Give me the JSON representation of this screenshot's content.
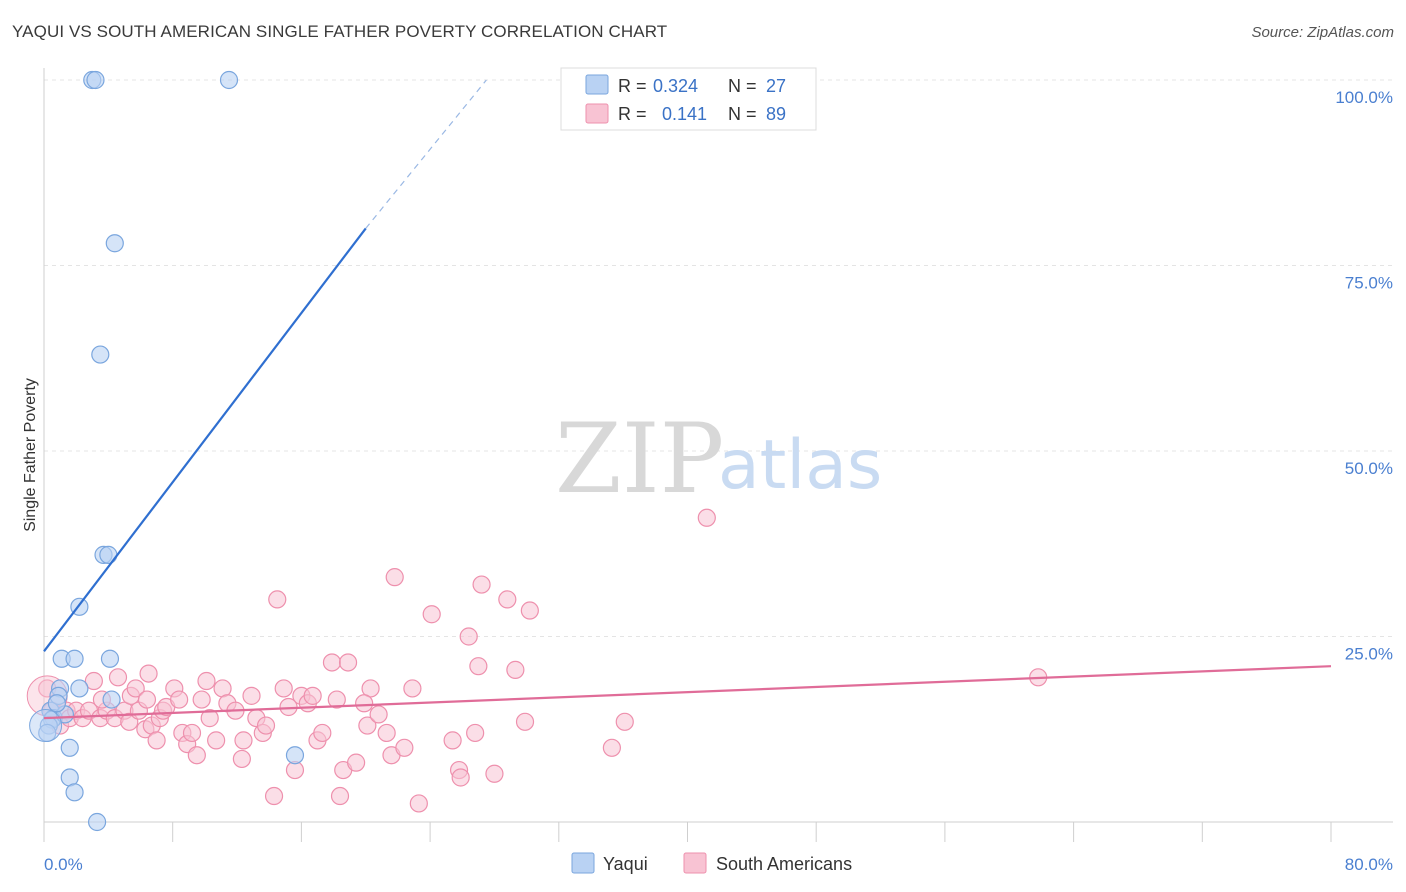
{
  "title": "YAQUI VS SOUTH AMERICAN SINGLE FATHER POVERTY CORRELATION CHART",
  "source": "Source: ZipAtlas.com",
  "watermark": {
    "zip": "ZIP",
    "atlas": "atlas"
  },
  "colors": {
    "yaqui_fill": "#b9d2f3",
    "yaqui_stroke": "#7aa6de",
    "yaqui_line": "#2f6fd0",
    "sa_fill": "#f8c3d3",
    "sa_stroke": "#ee90ad",
    "sa_line": "#e06c98",
    "grid": "#e4e4e4",
    "tick_text": "#4a7fd0"
  },
  "legend": {
    "r_label": "R =",
    "n_label": "N =",
    "rows": [
      {
        "r": "0.324",
        "n": "27"
      },
      {
        "r": "0.141",
        "n": "89"
      }
    ]
  },
  "chart_data": {
    "type": "scatter",
    "title": "YAQUI VS SOUTH AMERICAN SINGLE FATHER POVERTY CORRELATION CHART",
    "xlabel": "",
    "ylabel": "Single Father Poverty",
    "xlim": [
      0,
      80
    ],
    "ylim": [
      0,
      100
    ],
    "x_tick_labels": [
      "0.0%",
      "80.0%"
    ],
    "y_ticks": [
      25,
      50,
      75,
      100
    ],
    "y_tick_labels": [
      "25.0%",
      "50.0%",
      "75.0%",
      "100.0%"
    ],
    "grid": true,
    "series": [
      {
        "name": "Yaqui",
        "r": 0.324,
        "n": 27,
        "trend": {
          "x0": 0,
          "y0": 23,
          "x1": 20,
          "y1": 80,
          "dash_x1": 27.5,
          "dash_y1": 100
        },
        "points": [
          {
            "x": 3.0,
            "y": 100
          },
          {
            "x": 3.2,
            "y": 100
          },
          {
            "x": 11.5,
            "y": 100
          },
          {
            "x": 4.4,
            "y": 78
          },
          {
            "x": 3.5,
            "y": 63
          },
          {
            "x": 3.7,
            "y": 36
          },
          {
            "x": 4.0,
            "y": 36
          },
          {
            "x": 2.2,
            "y": 29
          },
          {
            "x": 1.1,
            "y": 22
          },
          {
            "x": 1.9,
            "y": 22
          },
          {
            "x": 4.1,
            "y": 22
          },
          {
            "x": 1.0,
            "y": 18
          },
          {
            "x": 0.9,
            "y": 17
          },
          {
            "x": 2.2,
            "y": 18
          },
          {
            "x": 4.2,
            "y": 16.5
          },
          {
            "x": 0.4,
            "y": 15
          },
          {
            "x": 0.6,
            "y": 14
          },
          {
            "x": 0.5,
            "y": 13.8
          },
          {
            "x": 0.3,
            "y": 13
          },
          {
            "x": 1.3,
            "y": 14.5
          },
          {
            "x": 1.6,
            "y": 10
          },
          {
            "x": 1.6,
            "y": 6
          },
          {
            "x": 1.9,
            "y": 4
          },
          {
            "x": 3.3,
            "y": 0
          },
          {
            "x": 0.2,
            "y": 12
          },
          {
            "x": 15.6,
            "y": 9
          },
          {
            "x": 0.8,
            "y": 16
          }
        ]
      },
      {
        "name": "South Americans",
        "r": 0.141,
        "n": 89,
        "trend": {
          "x0": 0,
          "y0": 14,
          "x1": 80,
          "y1": 21
        },
        "points": [
          {
            "x": 0.2,
            "y": 18
          },
          {
            "x": 0.5,
            "y": 15
          },
          {
            "x": 1.0,
            "y": 13
          },
          {
            "x": 1.4,
            "y": 15
          },
          {
            "x": 1.6,
            "y": 14
          },
          {
            "x": 2.0,
            "y": 15
          },
          {
            "x": 2.4,
            "y": 14
          },
          {
            "x": 2.8,
            "y": 15
          },
          {
            "x": 3.1,
            "y": 19
          },
          {
            "x": 3.5,
            "y": 14
          },
          {
            "x": 3.9,
            "y": 15
          },
          {
            "x": 4.4,
            "y": 14
          },
          {
            "x": 4.6,
            "y": 19.5
          },
          {
            "x": 5.0,
            "y": 15
          },
          {
            "x": 5.3,
            "y": 13.5
          },
          {
            "x": 5.4,
            "y": 17
          },
          {
            "x": 5.7,
            "y": 18
          },
          {
            "x": 5.9,
            "y": 15
          },
          {
            "x": 6.3,
            "y": 12.5
          },
          {
            "x": 6.4,
            "y": 16.5
          },
          {
            "x": 6.5,
            "y": 20
          },
          {
            "x": 6.7,
            "y": 13
          },
          {
            "x": 7.0,
            "y": 11
          },
          {
            "x": 7.2,
            "y": 14
          },
          {
            "x": 7.4,
            "y": 15
          },
          {
            "x": 7.6,
            "y": 15.5
          },
          {
            "x": 8.1,
            "y": 18
          },
          {
            "x": 8.4,
            "y": 16.5
          },
          {
            "x": 8.6,
            "y": 12
          },
          {
            "x": 8.9,
            "y": 10.5
          },
          {
            "x": 9.2,
            "y": 12
          },
          {
            "x": 9.5,
            "y": 9
          },
          {
            "x": 10.1,
            "y": 19
          },
          {
            "x": 10.3,
            "y": 14
          },
          {
            "x": 10.7,
            "y": 11
          },
          {
            "x": 11.1,
            "y": 18
          },
          {
            "x": 11.4,
            "y": 16
          },
          {
            "x": 11.9,
            "y": 15
          },
          {
            "x": 12.3,
            "y": 8.5
          },
          {
            "x": 12.4,
            "y": 11
          },
          {
            "x": 12.9,
            "y": 17
          },
          {
            "x": 13.2,
            "y": 14
          },
          {
            "x": 13.6,
            "y": 12
          },
          {
            "x": 13.8,
            "y": 13
          },
          {
            "x": 14.3,
            "y": 3.5
          },
          {
            "x": 14.5,
            "y": 30
          },
          {
            "x": 14.9,
            "y": 18
          },
          {
            "x": 15.2,
            "y": 15.5
          },
          {
            "x": 15.6,
            "y": 7
          },
          {
            "x": 16.0,
            "y": 17
          },
          {
            "x": 16.4,
            "y": 16
          },
          {
            "x": 16.7,
            "y": 17
          },
          {
            "x": 17.0,
            "y": 11
          },
          {
            "x": 17.3,
            "y": 12
          },
          {
            "x": 17.9,
            "y": 21.5
          },
          {
            "x": 18.2,
            "y": 16.5
          },
          {
            "x": 18.4,
            "y": 3.5
          },
          {
            "x": 18.6,
            "y": 7
          },
          {
            "x": 18.9,
            "y": 21.5
          },
          {
            "x": 19.4,
            "y": 8
          },
          {
            "x": 20.1,
            "y": 13
          },
          {
            "x": 20.3,
            "y": 18
          },
          {
            "x": 20.8,
            "y": 14.5
          },
          {
            "x": 21.3,
            "y": 12
          },
          {
            "x": 21.6,
            "y": 9
          },
          {
            "x": 21.8,
            "y": 33
          },
          {
            "x": 22.4,
            "y": 10
          },
          {
            "x": 22.9,
            "y": 18
          },
          {
            "x": 23.3,
            "y": 2.5
          },
          {
            "x": 25.4,
            "y": 11
          },
          {
            "x": 25.8,
            "y": 7
          },
          {
            "x": 25.9,
            "y": 6
          },
          {
            "x": 26.4,
            "y": 25
          },
          {
            "x": 26.8,
            "y": 12
          },
          {
            "x": 27.0,
            "y": 21
          },
          {
            "x": 27.2,
            "y": 32
          },
          {
            "x": 28.0,
            "y": 6.5
          },
          {
            "x": 28.8,
            "y": 30
          },
          {
            "x": 29.3,
            "y": 20.5
          },
          {
            "x": 29.9,
            "y": 13.5
          },
          {
            "x": 30.2,
            "y": 28.5
          },
          {
            "x": 35.3,
            "y": 10
          },
          {
            "x": 36.1,
            "y": 13.5
          },
          {
            "x": 41.2,
            "y": 41
          },
          {
            "x": 61.8,
            "y": 19.5
          },
          {
            "x": 9.8,
            "y": 16.5
          },
          {
            "x": 24.1,
            "y": 28
          },
          {
            "x": 3.6,
            "y": 16.5
          },
          {
            "x": 19.9,
            "y": 16
          }
        ]
      }
    ]
  },
  "bottom_legend": {
    "items": [
      "Yaqui",
      "South Americans"
    ]
  }
}
